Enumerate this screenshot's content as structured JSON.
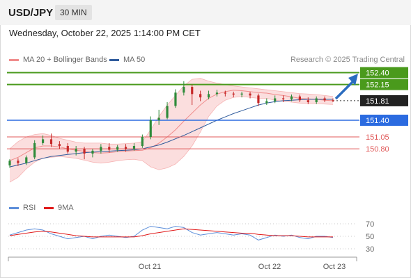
{
  "header": {
    "symbol": "USD/JPY",
    "timeframe": "30 MIN"
  },
  "timestamp": "Wednesday, October 22, 2025 1:14:00 PM CET",
  "legend": {
    "ma20": {
      "label": "MA 20 + Bollinger Bands",
      "color": "#f08c8c"
    },
    "ma50": {
      "label": "MA 50",
      "color": "#2f5b9c"
    },
    "credit": "Research © 2025 Trading Central"
  },
  "rsi_legend": {
    "rsi": {
      "label": "RSI",
      "color": "#5b8dd9"
    },
    "ma9": {
      "label": "9MA",
      "color": "#e01818"
    }
  },
  "colors": {
    "up": "#2e8b3a",
    "down": "#c62828",
    "target": "#4a9a1c",
    "pivot": "#2b6be0",
    "support": "#e05a5a",
    "current": "#222222",
    "arrow": "#2a6cbf"
  },
  "chart_data": [
    {
      "type": "candlestick",
      "x_labels": [
        "Oct 21",
        "Oct 22",
        "Oct 23"
      ],
      "levels": [
        {
          "label": "152.40",
          "value": 152.4,
          "kind": "target"
        },
        {
          "label": "152.15",
          "value": 152.15,
          "kind": "target"
        },
        {
          "label": "151.81",
          "value": 151.81,
          "kind": "current"
        },
        {
          "label": "151.40",
          "value": 151.4,
          "kind": "pivot"
        },
        {
          "label": "151.05",
          "value": 151.05,
          "kind": "support"
        },
        {
          "label": "150.80",
          "value": 150.8,
          "kind": "support"
        }
      ],
      "ma20": [
        150.55,
        150.62,
        150.72,
        150.82,
        150.86,
        150.86,
        150.84,
        150.8,
        150.77,
        150.75,
        150.72,
        150.71,
        150.72,
        150.74,
        150.75,
        150.76,
        150.77,
        150.82,
        150.92,
        151.05,
        151.2,
        151.38,
        151.55,
        151.72,
        151.86,
        151.95,
        152.0,
        152.03,
        152.02,
        152.0,
        151.98,
        151.97,
        151.94,
        151.92,
        151.89,
        151.86,
        151.85,
        151.84,
        151.82,
        151.81
      ],
      "ma50": [
        150.42,
        150.46,
        150.5,
        150.55,
        150.6,
        150.64,
        150.66,
        150.68,
        150.7,
        150.72,
        150.73,
        150.74,
        150.75,
        150.76,
        150.77,
        150.78,
        150.8,
        150.84,
        150.88,
        150.94,
        151.01,
        151.08,
        151.16,
        151.24,
        151.32,
        151.4,
        151.47,
        151.54,
        151.6,
        151.66,
        151.72,
        151.76,
        151.79,
        151.81,
        151.82,
        151.83,
        151.84,
        151.84,
        151.84,
        151.84
      ],
      "bb_upper": [
        150.8,
        150.95,
        151.05,
        151.1,
        151.12,
        151.08,
        151.02,
        150.98,
        150.94,
        150.92,
        150.92,
        150.92,
        150.9,
        150.9,
        150.91,
        150.92,
        150.95,
        151.2,
        151.48,
        151.72,
        151.92,
        152.12,
        152.26,
        152.28,
        152.22,
        152.18,
        152.15,
        152.12,
        152.1,
        152.08,
        152.06,
        152.04,
        152.02,
        152.0,
        151.98,
        151.96,
        151.95,
        151.94,
        151.92,
        151.9
      ],
      "bb_lower": [
        150.1,
        150.2,
        150.38,
        150.52,
        150.6,
        150.62,
        150.64,
        150.62,
        150.6,
        150.56,
        150.52,
        150.5,
        150.52,
        150.55,
        150.57,
        150.58,
        150.55,
        150.42,
        150.36,
        150.4,
        150.48,
        150.64,
        150.86,
        151.15,
        151.48,
        151.7,
        151.82,
        151.88,
        151.9,
        151.88,
        151.86,
        151.86,
        151.82,
        151.8,
        151.78,
        151.76,
        151.75,
        151.75,
        151.74,
        151.73
      ],
      "candles": [
        [
          150.45,
          150.55,
          150.58,
          150.4
        ],
        [
          150.55,
          150.5,
          150.6,
          150.44
        ],
        [
          150.5,
          150.62,
          150.66,
          150.46
        ],
        [
          150.62,
          150.92,
          150.98,
          150.58
        ],
        [
          150.92,
          151.0,
          151.08,
          150.88
        ],
        [
          151.0,
          150.9,
          151.12,
          150.84
        ],
        [
          150.9,
          150.86,
          150.96,
          150.8
        ],
        [
          150.86,
          150.74,
          150.92,
          150.7
        ],
        [
          150.74,
          150.8,
          150.86,
          150.66
        ],
        [
          150.8,
          150.7,
          150.84,
          150.58
        ],
        [
          150.7,
          150.76,
          150.8,
          150.62
        ],
        [
          150.76,
          150.84,
          150.9,
          150.7
        ],
        [
          150.84,
          150.78,
          150.92,
          150.72
        ],
        [
          150.78,
          150.84,
          150.88,
          150.74
        ],
        [
          150.84,
          150.8,
          150.9,
          150.74
        ],
        [
          150.8,
          150.86,
          150.92,
          150.76
        ],
        [
          150.86,
          151.05,
          151.1,
          150.82
        ],
        [
          151.05,
          151.4,
          151.48,
          151.0
        ],
        [
          151.4,
          151.45,
          151.62,
          151.3
        ],
        [
          151.45,
          151.7,
          151.78,
          151.42
        ],
        [
          151.7,
          151.98,
          152.05,
          151.66
        ],
        [
          151.98,
          152.1,
          152.22,
          151.92
        ],
        [
          152.1,
          151.95,
          152.15,
          151.72
        ],
        [
          151.95,
          151.88,
          152.02,
          151.8
        ],
        [
          151.88,
          151.95,
          152.02,
          151.84
        ],
        [
          151.95,
          151.98,
          152.04,
          151.9
        ],
        [
          151.98,
          151.96,
          152.02,
          151.9
        ],
        [
          151.96,
          151.94,
          152.0,
          151.88
        ],
        [
          151.94,
          151.96,
          152.0,
          151.88
        ],
        [
          151.96,
          151.92,
          152.0,
          151.86
        ],
        [
          151.92,
          151.76,
          151.96,
          151.7
        ],
        [
          151.76,
          151.8,
          151.86,
          151.72
        ],
        [
          151.8,
          151.86,
          151.92,
          151.76
        ],
        [
          151.86,
          151.84,
          151.92,
          151.78
        ],
        [
          151.84,
          151.9,
          151.94,
          151.8
        ],
        [
          151.9,
          151.82,
          151.94,
          151.78
        ],
        [
          151.82,
          151.78,
          151.88,
          151.74
        ],
        [
          151.78,
          151.86,
          151.9,
          151.74
        ],
        [
          151.86,
          151.82,
          151.9,
          151.78
        ],
        [
          151.82,
          151.81,
          151.86,
          151.78
        ]
      ]
    },
    {
      "type": "line",
      "y_ticks": [
        70,
        50,
        30
      ],
      "rsi": [
        52,
        56,
        60,
        62,
        60,
        54,
        50,
        46,
        48,
        50,
        46,
        50,
        52,
        50,
        48,
        50,
        60,
        66,
        64,
        62,
        66,
        64,
        56,
        52,
        54,
        56,
        54,
        52,
        54,
        52,
        44,
        48,
        52,
        50,
        52,
        48,
        46,
        50,
        50,
        48
      ],
      "ma9": [
        51,
        53,
        55,
        57,
        58,
        57,
        55,
        53,
        51,
        50,
        49,
        49,
        49,
        49,
        49,
        49,
        51,
        54,
        56,
        58,
        60,
        62,
        61,
        60,
        59,
        58,
        57,
        56,
        55,
        55,
        53,
        52,
        51,
        51,
        51,
        50,
        49,
        49,
        49,
        49
      ]
    }
  ]
}
